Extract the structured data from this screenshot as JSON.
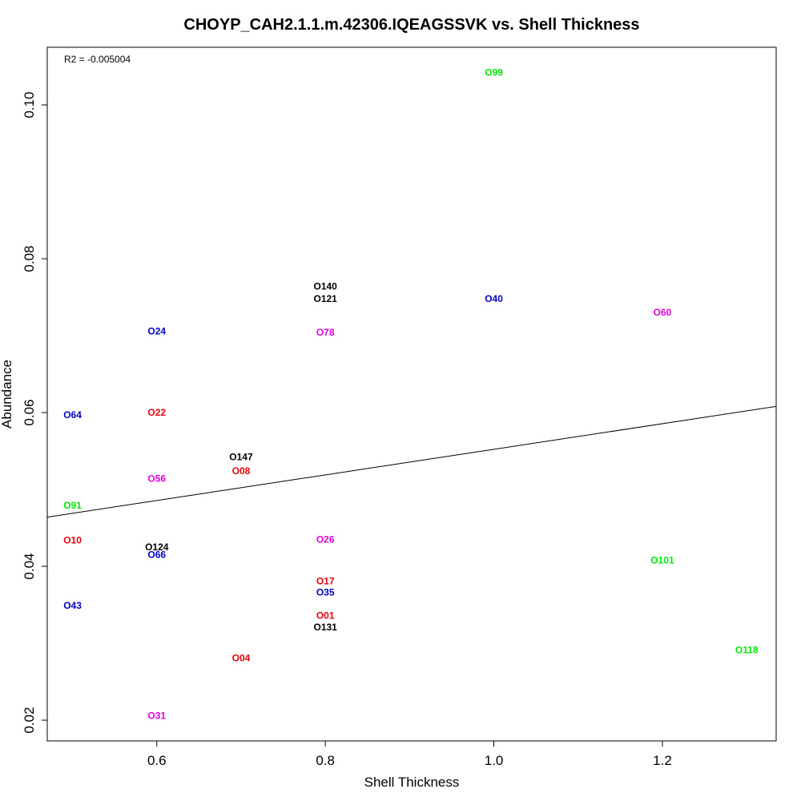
{
  "chart_data": {
    "type": "scatter",
    "title": "CHOYP_CAH2.1.1.m.42306.IQEAGSSVK vs. Shell Thickness",
    "xlabel": "Shell Thickness",
    "ylabel": "Abundance",
    "xlim": [
      0.47,
      1.335
    ],
    "ylim": [
      0.0173,
      0.1075
    ],
    "x_ticks": [
      0.6,
      0.8,
      1.0,
      1.2
    ],
    "x_tick_labels": [
      "0.6",
      "0.8",
      "1.0",
      "1.2"
    ],
    "y_ticks": [
      0.02,
      0.04,
      0.06,
      0.08,
      0.1
    ],
    "y_tick_labels": [
      "0.02",
      "0.04",
      "0.06",
      "0.08",
      "0.10"
    ],
    "grid": false,
    "annotation": "R2 = -0.005004",
    "regression_line": {
      "x": [
        0.47,
        1.335
      ],
      "y": [
        0.0464,
        0.0608
      ]
    },
    "colors": {
      "black": "#000000",
      "red": "#e8000b",
      "blue": "#0000c8",
      "magenta": "#e000e0",
      "green": "#00e800"
    },
    "points": [
      {
        "label": "O99",
        "x": 1.0,
        "y": 0.1042,
        "color": "#00e800"
      },
      {
        "label": "O140",
        "x": 0.8,
        "y": 0.0764,
        "color": "#000000"
      },
      {
        "label": "O121",
        "x": 0.8,
        "y": 0.0748,
        "color": "#000000"
      },
      {
        "label": "O40",
        "x": 1.0,
        "y": 0.0748,
        "color": "#0000c8"
      },
      {
        "label": "O60",
        "x": 1.2,
        "y": 0.073,
        "color": "#e000e0"
      },
      {
        "label": "O24",
        "x": 0.6,
        "y": 0.0706,
        "color": "#0000c8"
      },
      {
        "label": "O78",
        "x": 0.8,
        "y": 0.0704,
        "color": "#e000e0"
      },
      {
        "label": "O22",
        "x": 0.6,
        "y": 0.06,
        "color": "#e8000b"
      },
      {
        "label": "O64",
        "x": 0.5,
        "y": 0.0597,
        "color": "#0000c8"
      },
      {
        "label": "O147",
        "x": 0.7,
        "y": 0.0542,
        "color": "#000000"
      },
      {
        "label": "O08",
        "x": 0.7,
        "y": 0.0524,
        "color": "#e8000b"
      },
      {
        "label": "O56",
        "x": 0.6,
        "y": 0.0514,
        "color": "#e000e0"
      },
      {
        "label": "O91",
        "x": 0.5,
        "y": 0.0479,
        "color": "#00e800"
      },
      {
        "label": "O10",
        "x": 0.5,
        "y": 0.0434,
        "color": "#e8000b"
      },
      {
        "label": "O26",
        "x": 0.8,
        "y": 0.0435,
        "color": "#e000e0"
      },
      {
        "label": "O124",
        "x": 0.6,
        "y": 0.0425,
        "color": "#000000"
      },
      {
        "label": "O66",
        "x": 0.6,
        "y": 0.0415,
        "color": "#0000c8"
      },
      {
        "label": "O101",
        "x": 1.2,
        "y": 0.0408,
        "color": "#00e800"
      },
      {
        "label": "O17",
        "x": 0.8,
        "y": 0.0381,
        "color": "#e8000b"
      },
      {
        "label": "O35",
        "x": 0.8,
        "y": 0.0366,
        "color": "#0000c8"
      },
      {
        "label": "O43",
        "x": 0.5,
        "y": 0.0349,
        "color": "#0000c8"
      },
      {
        "label": "O01",
        "x": 0.8,
        "y": 0.0336,
        "color": "#e8000b"
      },
      {
        "label": "O131",
        "x": 0.8,
        "y": 0.0321,
        "color": "#000000"
      },
      {
        "label": "O118",
        "x": 1.3,
        "y": 0.0291,
        "color": "#00e800"
      },
      {
        "label": "O04",
        "x": 0.7,
        "y": 0.0281,
        "color": "#e8000b"
      },
      {
        "label": "O31",
        "x": 0.6,
        "y": 0.0206,
        "color": "#e000e0"
      }
    ]
  }
}
